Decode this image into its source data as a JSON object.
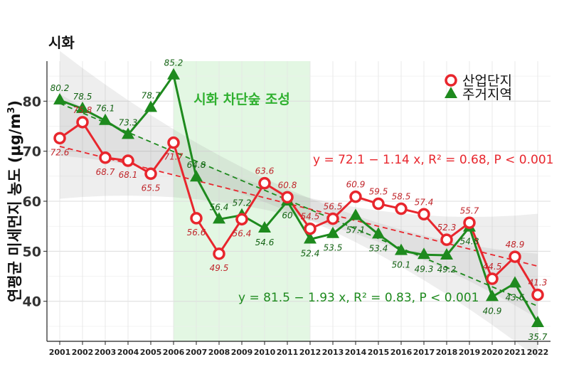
{
  "chart_data": {
    "type": "line",
    "title": "시화",
    "ylabel": "연평균 미세먼지 농도 (μg/m³)",
    "ylabel_text": "연평균 미세먼지 농도 (μg/m",
    "ylabel_sup": "3",
    "ylabel_close": ")",
    "xlabel": "",
    "categories": [
      "2001",
      "2002",
      "2003",
      "2004",
      "2005",
      "2006",
      "2007",
      "2008",
      "2009",
      "2010",
      "2011",
      "2012",
      "2013",
      "2014",
      "2015",
      "2016",
      "2017",
      "2018",
      "2019",
      "2020",
      "2021",
      "2022"
    ],
    "ylim": [
      32,
      88
    ],
    "yticks": [
      40,
      50,
      60,
      70,
      80
    ],
    "grid": true,
    "legend_position": "top-right",
    "shaded_period": {
      "from": "2006",
      "to": "2012",
      "label": "시화 차단숲 조성",
      "color": "#e3f7e3"
    },
    "series": [
      {
        "name": "산업단지",
        "color": "#e8262d",
        "marker": "circle",
        "values": [
          72.6,
          75.8,
          68.7,
          68.1,
          65.5,
          71.7,
          56.6,
          49.5,
          56.4,
          63.6,
          60.8,
          54.5,
          56.5,
          60.9,
          59.5,
          58.5,
          57.4,
          52.3,
          55.7,
          44.5,
          48.9,
          41.3
        ],
        "labels": [
          "72.6",
          "75.8",
          "68.7",
          "68.1",
          "65.5",
          "71.7",
          "56.6",
          "49.5",
          "56.4",
          "63.6",
          "60.8",
          "54.5",
          "56.5",
          "60.9",
          "59.5",
          "58.5",
          "57.4",
          "52.3",
          "55.7",
          "44.5",
          "48.9",
          "41.3"
        ],
        "label_pos": [
          "b",
          "t",
          "b",
          "b",
          "b",
          "b",
          "b",
          "b",
          "b",
          "t",
          "t",
          "t",
          "t",
          "t",
          "t",
          "t",
          "t",
          "t",
          "t",
          "t",
          "t",
          "t"
        ],
        "trend": {
          "intercept": 72.1,
          "slope": -1.14,
          "equation": "y = 72.1 − 1.14 x, R² = 0.68, P < 0.001"
        }
      },
      {
        "name": "주거지역",
        "color": "#1e8a1e",
        "marker": "triangle",
        "values": [
          80.2,
          78.5,
          76.1,
          73.3,
          78.7,
          85.2,
          64.8,
          56.4,
          57.2,
          54.6,
          60.0,
          52.4,
          53.5,
          57.1,
          53.4,
          50.1,
          49.3,
          49.2,
          54.8,
          40.9,
          43.6,
          35.7
        ],
        "labels": [
          "80.2",
          "78.5",
          "76.1",
          "73.3",
          "78.7",
          "85.2",
          "64.8",
          "56.4",
          "57.2",
          "54.6",
          "60",
          "52.4",
          "53.5",
          "57.1",
          "53.4",
          "50.1",
          "49.3",
          "49.2",
          "54.8",
          "40.9",
          "43.6",
          "35.7"
        ],
        "label_pos": [
          "t",
          "t",
          "t",
          "t",
          "t",
          "t",
          "t",
          "t",
          "t",
          "b",
          "b",
          "b",
          "b",
          "b",
          "b",
          "b",
          "b",
          "b",
          "b",
          "b",
          "b",
          "b"
        ],
        "trend": {
          "intercept": 81.5,
          "slope": -1.93,
          "equation": "y = 81.5 − 1.93 x, R² = 0.83, P < 0.001"
        }
      }
    ]
  }
}
